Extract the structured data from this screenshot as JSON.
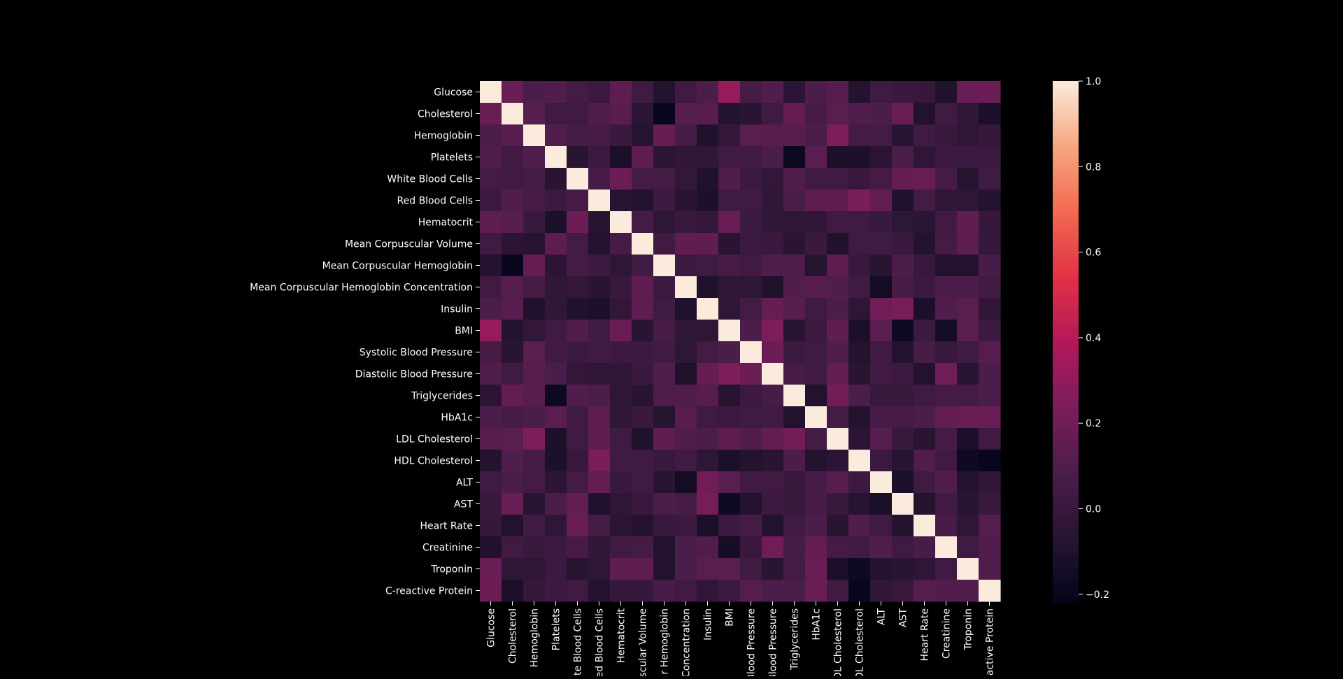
{
  "chart_data": {
    "type": "heatmap",
    "title": "",
    "xlabel": "",
    "ylabel": "",
    "labels": [
      "Glucose",
      "Cholesterol",
      "Hemoglobin",
      "Platelets",
      "White Blood Cells",
      "Red Blood Cells",
      "Hematocrit",
      "Mean Corpuscular Volume",
      "Mean Corpuscular Hemoglobin",
      "Mean Corpuscular Hemoglobin Concentration",
      "Insulin",
      "BMI",
      "Systolic Blood Pressure",
      "Diastolic Blood Pressure",
      "Triglycerides",
      "HbA1c",
      "LDL Cholesterol",
      "HDL Cholesterol",
      "ALT",
      "AST",
      "Heart Rate",
      "Creatinine",
      "Troponin",
      "C-reactive Protein"
    ],
    "x_tick_labels": [
      "Glucose",
      "Cholesterol",
      "Hemoglobin",
      "Platelets",
      "te Blood Cells",
      "ed Blood Cells",
      "Hematocrit",
      "scular Volume",
      "r Hemoglobin",
      "Concentration",
      "Insulin",
      "BMI",
      "Blood Pressure",
      "Blood Pressure",
      "Triglycerides",
      "HbA1c",
      "DL Cholesterol",
      "DL Cholesterol",
      "ALT",
      "AST",
      "Heart Rate",
      "Creatinine",
      "Troponin",
      "eactive Protein"
    ],
    "colorbar": {
      "min": -0.22,
      "max": 1.0,
      "ticks": [
        1.0,
        0.8,
        0.6,
        0.4,
        0.2,
        0.0,
        -0.2
      ],
      "tick_labels": [
        "1.0",
        "0.8",
        "0.6",
        "0.4",
        "0.2",
        "0.0",
        "−0.2"
      ],
      "colormap": "rocket"
    },
    "values": [
      [
        1.0,
        0.18,
        0.08,
        0.1,
        0.05,
        0.02,
        0.14,
        0.03,
        -0.08,
        0.04,
        0.08,
        0.31,
        0.06,
        0.1,
        -0.05,
        0.08,
        0.12,
        -0.08,
        0.03,
        0.01,
        -0.01,
        -0.1,
        0.18,
        0.19
      ],
      [
        0.18,
        1.0,
        0.12,
        0.04,
        0.04,
        0.1,
        0.12,
        -0.05,
        -0.2,
        0.12,
        0.12,
        -0.08,
        -0.06,
        0.03,
        0.16,
        0.06,
        0.13,
        0.1,
        0.08,
        0.18,
        -0.09,
        0.04,
        -0.03,
        -0.12
      ],
      [
        0.08,
        0.12,
        1.0,
        0.1,
        0.05,
        0.06,
        0.01,
        -0.07,
        0.17,
        0.06,
        -0.1,
        -0.02,
        0.13,
        0.12,
        0.12,
        0.08,
        0.24,
        0.05,
        0.05,
        -0.06,
        0.03,
        0.0,
        -0.04,
        -0.01
      ],
      [
        0.1,
        0.04,
        0.1,
        1.0,
        -0.06,
        0.02,
        -0.12,
        0.14,
        -0.05,
        -0.03,
        -0.03,
        0.03,
        0.03,
        0.08,
        -0.18,
        0.13,
        -0.11,
        -0.11,
        -0.05,
        0.08,
        -0.04,
        0.02,
        0.02,
        0.02
      ],
      [
        0.05,
        0.04,
        0.05,
        -0.06,
        1.0,
        0.06,
        0.19,
        0.05,
        0.05,
        -0.02,
        -0.1,
        0.1,
        0.02,
        -0.02,
        0.1,
        0.04,
        0.03,
        0.0,
        0.05,
        0.16,
        0.18,
        0.06,
        -0.07,
        0.03
      ],
      [
        0.02,
        0.1,
        0.06,
        0.02,
        0.06,
        1.0,
        -0.07,
        -0.08,
        0.02,
        -0.06,
        -0.11,
        0.03,
        0.03,
        -0.03,
        0.08,
        0.14,
        0.15,
        0.23,
        0.16,
        -0.1,
        0.05,
        -0.03,
        -0.04,
        -0.08
      ],
      [
        0.14,
        0.12,
        0.01,
        -0.12,
        0.19,
        -0.07,
        1.0,
        0.06,
        -0.04,
        0.0,
        -0.02,
        0.18,
        0.02,
        -0.03,
        -0.04,
        -0.03,
        0.03,
        0.04,
        0.01,
        -0.04,
        -0.05,
        0.04,
        0.15,
        -0.01
      ],
      [
        0.03,
        -0.05,
        -0.07,
        0.14,
        0.05,
        -0.08,
        0.06,
        1.0,
        0.04,
        0.15,
        0.15,
        -0.06,
        0.02,
        0.01,
        -0.06,
        0.01,
        -0.1,
        0.03,
        0.03,
        0.0,
        -0.08,
        0.05,
        0.14,
        -0.01
      ],
      [
        -0.08,
        -0.2,
        0.17,
        -0.05,
        0.05,
        0.02,
        -0.04,
        0.04,
        1.0,
        0.02,
        0.03,
        0.06,
        0.04,
        0.09,
        0.09,
        -0.07,
        0.15,
        0.0,
        -0.06,
        0.08,
        0.0,
        -0.09,
        -0.09,
        0.07
      ],
      [
        0.04,
        0.12,
        0.06,
        -0.03,
        -0.02,
        -0.06,
        0.0,
        0.15,
        0.02,
        1.0,
        -0.1,
        -0.04,
        -0.04,
        -0.1,
        0.1,
        0.12,
        0.1,
        0.03,
        -0.15,
        0.06,
        0.02,
        0.08,
        0.08,
        0.04
      ],
      [
        0.08,
        0.12,
        -0.1,
        -0.03,
        -0.1,
        -0.11,
        -0.02,
        0.15,
        0.03,
        -0.1,
        1.0,
        -0.04,
        0.05,
        0.17,
        0.12,
        0.03,
        0.08,
        -0.04,
        0.2,
        0.22,
        -0.12,
        0.1,
        0.13,
        -0.03
      ],
      [
        0.31,
        -0.08,
        -0.02,
        0.03,
        0.1,
        0.03,
        0.18,
        -0.06,
        0.06,
        -0.04,
        -0.04,
        1.0,
        0.08,
        0.24,
        -0.07,
        0.02,
        0.15,
        -0.12,
        0.13,
        -0.17,
        0.02,
        -0.14,
        0.13,
        0.02
      ],
      [
        0.06,
        -0.06,
        0.13,
        0.03,
        0.02,
        0.03,
        0.02,
        0.02,
        0.04,
        -0.04,
        0.05,
        0.08,
        1.0,
        0.19,
        0.02,
        0.03,
        0.1,
        -0.08,
        0.04,
        -0.08,
        0.06,
        0.0,
        0.03,
        0.11
      ],
      [
        0.1,
        0.03,
        0.12,
        0.08,
        -0.02,
        -0.03,
        -0.03,
        0.01,
        0.09,
        -0.1,
        0.17,
        0.24,
        0.19,
        1.0,
        0.06,
        0.03,
        0.16,
        -0.06,
        0.04,
        0.02,
        -0.09,
        0.2,
        -0.06,
        0.08
      ],
      [
        -0.05,
        0.16,
        0.12,
        -0.18,
        0.1,
        0.08,
        -0.04,
        -0.06,
        0.09,
        0.1,
        0.12,
        -0.07,
        0.02,
        0.06,
        1.0,
        -0.09,
        0.21,
        0.08,
        0.0,
        0.0,
        0.04,
        0.05,
        0.05,
        0.08
      ],
      [
        0.08,
        0.06,
        0.08,
        0.13,
        0.04,
        0.14,
        -0.03,
        0.01,
        -0.07,
        0.12,
        0.03,
        0.02,
        0.03,
        0.03,
        -0.09,
        1.0,
        0.05,
        -0.08,
        0.07,
        0.06,
        0.08,
        0.16,
        0.18,
        0.18
      ],
      [
        0.12,
        0.13,
        0.24,
        -0.11,
        0.03,
        0.15,
        0.03,
        -0.1,
        0.15,
        0.1,
        0.08,
        0.15,
        0.1,
        0.16,
        0.21,
        0.05,
        1.0,
        -0.05,
        0.12,
        0.0,
        -0.06,
        0.05,
        -0.12,
        0.04
      ],
      [
        -0.08,
        0.1,
        0.05,
        -0.11,
        0.0,
        0.23,
        0.04,
        0.03,
        0.0,
        0.03,
        -0.04,
        -0.12,
        -0.08,
        -0.06,
        0.08,
        -0.08,
        -0.05,
        1.0,
        0.02,
        -0.07,
        0.1,
        0.04,
        -0.17,
        -0.2
      ],
      [
        0.03,
        0.08,
        0.05,
        -0.05,
        0.05,
        0.16,
        0.01,
        0.03,
        -0.06,
        -0.15,
        0.2,
        0.13,
        0.04,
        0.04,
        0.0,
        0.07,
        0.12,
        0.02,
        1.0,
        -0.12,
        0.03,
        0.1,
        -0.08,
        -0.03
      ],
      [
        0.01,
        0.18,
        -0.06,
        0.08,
        0.16,
        -0.1,
        -0.04,
        0.0,
        0.08,
        0.06,
        0.22,
        -0.17,
        -0.08,
        0.02,
        0.0,
        0.06,
        0.0,
        -0.07,
        -0.12,
        1.0,
        -0.08,
        0.03,
        -0.06,
        0.0
      ],
      [
        -0.01,
        -0.09,
        0.03,
        -0.04,
        0.18,
        0.05,
        -0.05,
        -0.08,
        0.0,
        0.02,
        -0.12,
        0.02,
        0.06,
        -0.09,
        0.04,
        0.08,
        -0.06,
        0.1,
        0.03,
        -0.08,
        1.0,
        0.07,
        -0.04,
        0.11
      ],
      [
        -0.1,
        0.04,
        0.0,
        0.02,
        0.06,
        -0.03,
        0.04,
        0.05,
        -0.09,
        0.08,
        0.1,
        -0.14,
        0.0,
        0.2,
        0.05,
        0.16,
        0.05,
        0.04,
        0.1,
        0.03,
        0.07,
        1.0,
        0.04,
        0.1
      ],
      [
        0.18,
        -0.03,
        -0.04,
        0.02,
        -0.07,
        -0.04,
        0.15,
        0.14,
        -0.09,
        0.08,
        0.13,
        0.13,
        0.03,
        -0.06,
        0.05,
        0.18,
        -0.12,
        -0.17,
        -0.08,
        -0.06,
        -0.04,
        0.04,
        1.0,
        0.1
      ],
      [
        0.19,
        -0.12,
        -0.01,
        0.02,
        0.03,
        -0.08,
        -0.01,
        -0.01,
        0.07,
        0.04,
        -0.03,
        0.02,
        0.11,
        0.08,
        0.08,
        0.18,
        0.04,
        -0.2,
        -0.03,
        0.0,
        0.11,
        0.1,
        0.1,
        1.0
      ]
    ]
  }
}
